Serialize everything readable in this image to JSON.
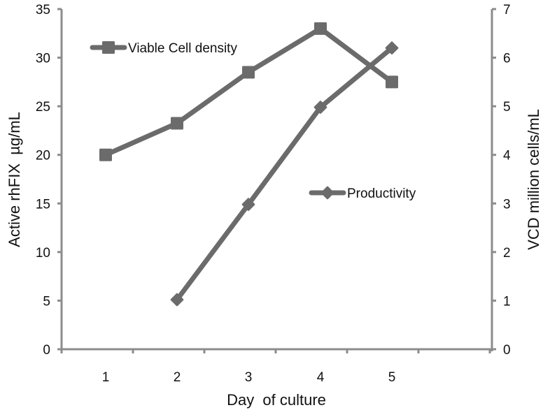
{
  "chart_data": {
    "type": "line",
    "title": "",
    "xlabel": "Day  of culture",
    "ylabel": "Active rhFIX  µg/mL",
    "ylabel_right": "VCD million cells/mL",
    "categories": [
      "1",
      "2",
      "3",
      "4",
      "5"
    ],
    "ylim": [
      0,
      35
    ],
    "ylim_right": [
      0,
      7
    ],
    "yticks": [
      "0",
      "5",
      "10",
      "15",
      "20",
      "25",
      "30",
      "35"
    ],
    "yticks_right": [
      "0",
      "1",
      "2",
      "3",
      "4",
      "5",
      "6",
      "7"
    ],
    "grid": false,
    "series": [
      {
        "name": "Viable Cell density",
        "axis": "right",
        "marker": "square",
        "values": [
          4.0,
          4.65,
          5.7,
          6.6,
          5.5
        ]
      },
      {
        "name": "Productivity",
        "axis": "left",
        "marker": "diamond",
        "values": [
          null,
          5.1,
          14.9,
          24.9,
          31.0
        ]
      }
    ],
    "legend": {
      "position": "inside",
      "entries": [
        "Viable Cell density",
        "Productivity"
      ]
    },
    "colors": {
      "series": "#6b6b6b",
      "axis": "#8c8c8c",
      "text": "#111111"
    }
  }
}
